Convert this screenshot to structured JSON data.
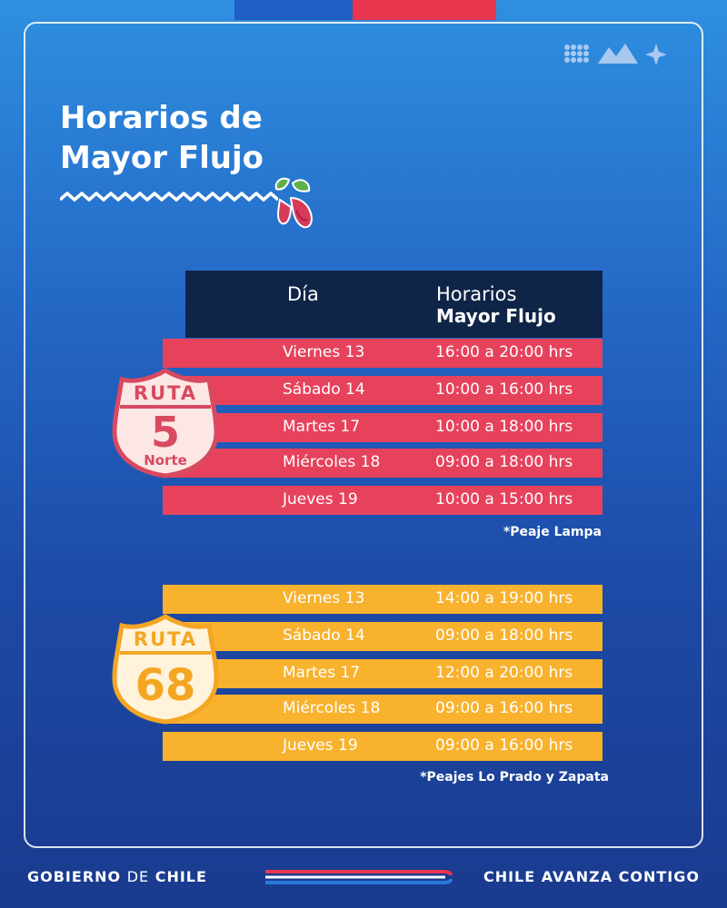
{
  "title": {
    "line1": "Horarios de",
    "line2": "Mayor Flujo"
  },
  "table_header": {
    "day": "Día",
    "time_line1": "Horarios",
    "time_line2": "Mayor Flujo"
  },
  "ruta5": {
    "shield_top": "RUTA",
    "shield_number": "5",
    "shield_bottom": "Norte",
    "color": "#e7425c",
    "rows": [
      {
        "day": "Viernes 13",
        "time": "16:00 a 20:00 hrs"
      },
      {
        "day": "Sábado 14",
        "time": "10:00 a 16:00 hrs"
      },
      {
        "day": "Martes 17",
        "time": "10:00 a 18:00 hrs"
      },
      {
        "day": "Miércoles 18",
        "time": "09:00 a 18:00 hrs"
      },
      {
        "day": "Jueves 19",
        "time": "10:00 a 15:00 hrs"
      }
    ],
    "note": "*Peaje Lampa"
  },
  "ruta68": {
    "shield_top": "RUTA",
    "shield_number": "68",
    "color": "#f8b22e",
    "rows": [
      {
        "day": "Viernes 13",
        "time": "14:00 a 19:00 hrs"
      },
      {
        "day": "Sábado 14",
        "time": "09:00 a 18:00 hrs"
      },
      {
        "day": "Martes 17",
        "time": "12:00 a 20:00 hrs"
      },
      {
        "day": "Miércoles 18",
        "time": "09:00 a 16:00 hrs"
      },
      {
        "day": "Jueves 19",
        "time": "09:00 a 16:00 hrs"
      }
    ],
    "note": "*Peajes Lo Prado y Zapata"
  },
  "footer": {
    "left_part1": "GOBIERNO",
    "left_part2": "DE",
    "left_part3": "CHILE",
    "right": "CHILE AVANZA CONTIGO"
  },
  "icons": [
    "gobierno-logo-icon",
    "copihue-flower-icon",
    "route-shield-icon"
  ]
}
